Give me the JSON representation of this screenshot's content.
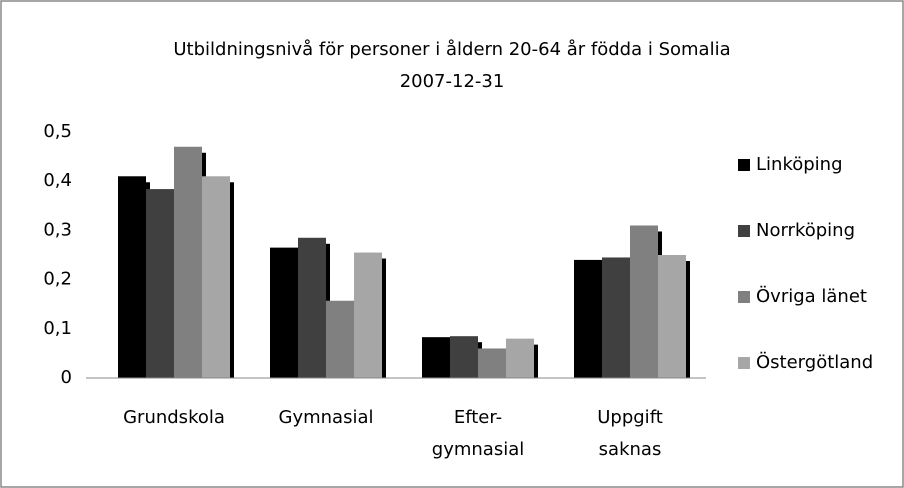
{
  "chart_data": {
    "type": "bar",
    "title": "Utbildningsnivå för personer i åldern 20-64 år födda i Somalia",
    "subtitle": "2007-12-31",
    "categories": [
      [
        "Grundskola"
      ],
      [
        "Gymnasial"
      ],
      [
        "Efter-",
        "gymnasial"
      ],
      [
        "Uppgift",
        "saknas"
      ]
    ],
    "series": [
      {
        "name": "Linköping",
        "color": "#000000",
        "values": [
          0.41,
          0.265,
          0.083,
          0.24
        ]
      },
      {
        "name": "Norrköping",
        "color": "#404040",
        "values": [
          0.384,
          0.285,
          0.085,
          0.245
        ]
      },
      {
        "name": "Övriga länet",
        "color": "#808080",
        "values": [
          0.47,
          0.157,
          0.06,
          0.31
        ]
      },
      {
        "name": "Östergötland",
        "color": "#a6a6a6",
        "values": [
          0.41,
          0.255,
          0.08,
          0.25
        ]
      }
    ],
    "ylim": [
      0,
      0.5
    ],
    "yticks": [
      0,
      {
        "value": 0.1,
        "label": "0,1"
      },
      {
        "value": 0.2,
        "label": "0,2"
      },
      {
        "value": 0.3,
        "label": "0,3"
      },
      {
        "value": 0.4,
        "label": "0,4"
      },
      {
        "value": 0.5,
        "label": "0,5"
      }
    ],
    "grid": false,
    "legend": "right"
  }
}
